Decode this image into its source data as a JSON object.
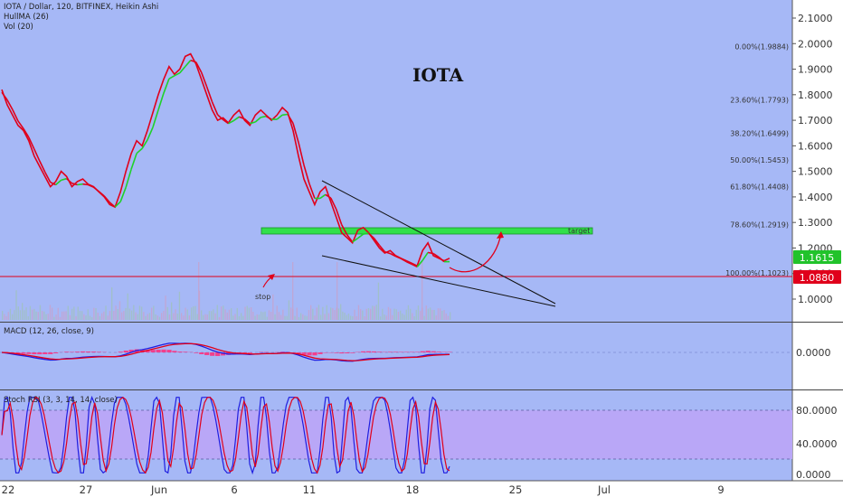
{
  "header": {
    "symbol_line": "IOTA / Dollar, 120, BITFINEX, Heikin Ashi",
    "hull_label": "HullMA (26)",
    "vol_label": "Vol (20)"
  },
  "colors": {
    "background": "#a6b8f6",
    "price_line": "#e0001b",
    "hull_up": "#1fd12a",
    "hull_down": "#e0001b",
    "support_line": "#e0001b",
    "target_zone": "#31e04a",
    "macd_line": "#1f1ee0",
    "signal_line": "#e0001b",
    "histogram": "#ff2a7a",
    "stoch_k": "#1f1ee0",
    "stoch_d": "#e0001b",
    "stoch_band": "#b9a7f7",
    "badge_green": "#21c32b",
    "badge_red": "#e0001b"
  },
  "annotations": {
    "title": "IOTA",
    "target_label": "target",
    "stop_label": "stop"
  },
  "badges": {
    "current_price": "1.1615",
    "support_price": "1.0880"
  },
  "macd_panel": {
    "label": "MACD (12, 26, close, 9)",
    "ticks": [
      "0.0000"
    ]
  },
  "stoch_panel": {
    "label": "Stoch RSI (3, 3, 14, 14, close)",
    "ticks": [
      "80.0000",
      "40.0000",
      "0.0000"
    ]
  },
  "chart_data": {
    "type": "line",
    "y_ticks": [
      "2.1000",
      "2.0000",
      "1.9000",
      "1.8000",
      "1.7000",
      "1.6000",
      "1.5000",
      "1.4000",
      "1.3000",
      "1.2000",
      "1.1000",
      "1.0000"
    ],
    "ylim": [
      0.93,
      2.14
    ],
    "x_ticks": [
      "22",
      "27",
      "Jun",
      "6",
      "11",
      "18",
      "25",
      "Jul",
      "9"
    ],
    "fib_levels": [
      {
        "label": "0.00%(1.9884)",
        "price": 1.9884
      },
      {
        "label": "23.60%(1.7793)",
        "price": 1.7793
      },
      {
        "label": "38.20%(1.6499)",
        "price": 1.6499
      },
      {
        "label": "50.00%(1.5453)",
        "price": 1.5453
      },
      {
        "label": "61.80%(1.4408)",
        "price": 1.4408
      },
      {
        "label": "78.60%(1.2919)",
        "price": 1.2919
      },
      {
        "label": "100.00%(1.1023)",
        "price": 1.1023
      }
    ],
    "price_series": [
      1.82,
      1.76,
      1.72,
      1.68,
      1.66,
      1.62,
      1.56,
      1.52,
      1.48,
      1.44,
      1.46,
      1.5,
      1.48,
      1.44,
      1.46,
      1.47,
      1.45,
      1.44,
      1.42,
      1.4,
      1.37,
      1.36,
      1.42,
      1.5,
      1.57,
      1.62,
      1.6,
      1.66,
      1.73,
      1.8,
      1.86,
      1.91,
      1.88,
      1.9,
      1.95,
      1.96,
      1.92,
      1.86,
      1.8,
      1.74,
      1.7,
      1.71,
      1.69,
      1.72,
      1.74,
      1.7,
      1.68,
      1.72,
      1.74,
      1.72,
      1.7,
      1.72,
      1.75,
      1.73,
      1.66,
      1.56,
      1.47,
      1.42,
      1.37,
      1.42,
      1.44,
      1.38,
      1.32,
      1.26,
      1.24,
      1.22,
      1.27,
      1.28,
      1.26,
      1.23,
      1.2,
      1.18,
      1.19,
      1.17,
      1.16,
      1.15,
      1.14,
      1.13,
      1.19,
      1.22,
      1.17,
      1.16,
      1.15,
      1.16
    ]
  }
}
